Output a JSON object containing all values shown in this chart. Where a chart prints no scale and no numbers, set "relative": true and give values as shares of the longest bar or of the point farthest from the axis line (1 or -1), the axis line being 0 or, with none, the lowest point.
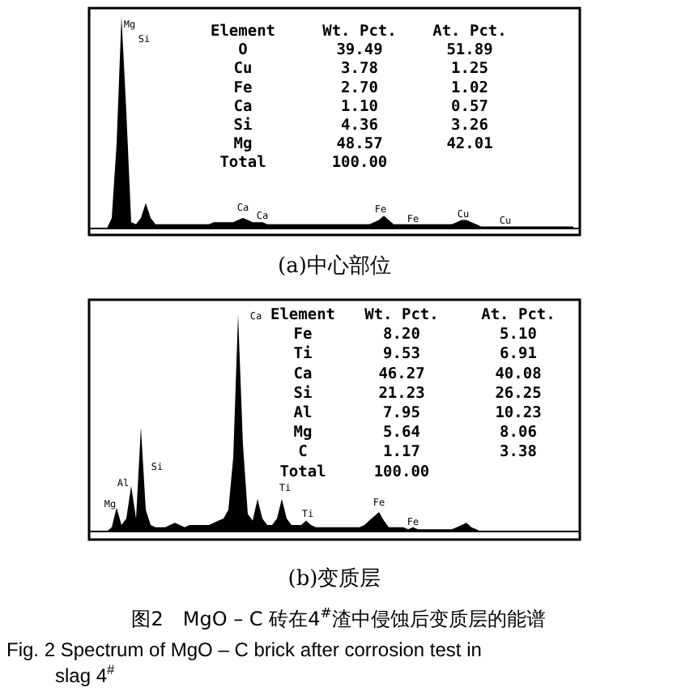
{
  "chart_data": [
    {
      "type": "area",
      "relative": true,
      "color": "#000000",
      "title": "(a)中心部位",
      "categories": [
        null,
        null,
        null,
        null,
        null,
        null,
        null,
        null,
        null,
        null,
        null,
        null,
        null,
        null,
        null,
        null,
        null,
        null,
        null,
        null,
        null,
        null,
        null,
        null,
        null,
        null,
        null,
        null,
        null,
        null,
        null,
        null,
        null,
        null,
        null,
        null,
        null,
        null,
        null,
        null,
        null,
        null,
        null,
        null,
        null,
        null,
        null,
        null,
        null,
        null,
        null,
        null,
        null,
        null,
        null,
        null,
        null,
        null,
        null,
        null,
        null,
        null,
        null,
        null,
        null,
        null,
        null,
        null,
        null,
        null,
        null,
        null,
        null,
        null,
        null,
        null,
        null,
        null,
        null,
        null,
        null,
        null,
        null,
        null,
        null,
        null,
        null,
        null,
        null,
        null,
        null,
        null,
        null,
        null,
        null,
        null,
        null,
        null,
        null,
        null
      ],
      "values": [
        0,
        0,
        0,
        0,
        0.05,
        0.4,
        1.0,
        0.55,
        0.03,
        0.02,
        0.05,
        0.12,
        0.05,
        0.02,
        0.02,
        0.02,
        0.02,
        0.02,
        0.02,
        0.02,
        0.02,
        0.02,
        0.02,
        0.02,
        0.02,
        0.03,
        0.03,
        0.03,
        0.03,
        0.03,
        0.04,
        0.05,
        0.04,
        0.03,
        0.03,
        0.03,
        0.02,
        0.02,
        0.02,
        0.02,
        0.02,
        0.02,
        0.02,
        0.02,
        0.02,
        0.02,
        0.02,
        0.02,
        0.02,
        0.02,
        0.02,
        0.02,
        0.02,
        0.02,
        0.02,
        0.02,
        0.02,
        0.02,
        0.03,
        0.04,
        0.06,
        0.04,
        0.02,
        0.02,
        0.02,
        0.02,
        0.02,
        0.02,
        0.02,
        0.02,
        0.02,
        0.02,
        0.02,
        0.02,
        0.02,
        0.03,
        0.04,
        0.04,
        0.03,
        0.02,
        0.01,
        0.01,
        0.01,
        0.01,
        0.01,
        0.01,
        0.01,
        0.01,
        0.01,
        0.01,
        0.01,
        0.01,
        0.01,
        0.01,
        0.01,
        0.01,
        0.01,
        0.01,
        0.01,
        0.01
      ],
      "annotations": [
        "Mg",
        "Si",
        "Ca",
        "Ca",
        "Fe",
        "Fe",
        "Cu",
        "Cu",
        "Element",
        "Wt. Pct.",
        "At. Pct.",
        "O",
        "39.49",
        "51.89",
        "Cu",
        "3.78",
        "1.25",
        "Fe",
        "2.70",
        "1.02",
        "Ca",
        "1.10",
        "0.57",
        "Si",
        "4.36",
        "3.26",
        "Mg",
        "48.57",
        "42.01",
        "Total",
        "100.00"
      ]
    },
    {
      "type": "area",
      "relative": true,
      "color": "#000000",
      "title": "(b)变质层",
      "categories": [
        null,
        null,
        null,
        null,
        null,
        null,
        null,
        null,
        null,
        null,
        null,
        null,
        null,
        null,
        null,
        null,
        null,
        null,
        null,
        null,
        null,
        null,
        null,
        null,
        null,
        null,
        null,
        null,
        null,
        null,
        null,
        null,
        null,
        null,
        null,
        null,
        null,
        null,
        null,
        null,
        null,
        null,
        null,
        null,
        null,
        null,
        null,
        null,
        null,
        null,
        null,
        null,
        null,
        null,
        null,
        null,
        null,
        null,
        null,
        null,
        null,
        null,
        null,
        null,
        null,
        null,
        null,
        null,
        null,
        null,
        null,
        null,
        null,
        null,
        null,
        null,
        null,
        null,
        null,
        null,
        null,
        null,
        null,
        null,
        null,
        null,
        null,
        null,
        null,
        null,
        null,
        null,
        null,
        null,
        null,
        null,
        null,
        null,
        null,
        null
      ],
      "values": [
        0,
        0,
        0,
        0,
        0.02,
        0.11,
        0.03,
        0.06,
        0.21,
        0.06,
        0.48,
        0.1,
        0.03,
        0.02,
        0.02,
        0.02,
        0.03,
        0.04,
        0.03,
        0.02,
        0.03,
        0.03,
        0.03,
        0.03,
        0.03,
        0.04,
        0.05,
        0.06,
        0.1,
        0.34,
        1.0,
        0.4,
        0.08,
        0.05,
        0.15,
        0.06,
        0.03,
        0.03,
        0.06,
        0.15,
        0.06,
        0.03,
        0.03,
        0.03,
        0.05,
        0.03,
        0.02,
        0.02,
        0.02,
        0.02,
        0.02,
        0.02,
        0.02,
        0.02,
        0.02,
        0.02,
        0.03,
        0.05,
        0.07,
        0.09,
        0.05,
        0.02,
        0.02,
        0.02,
        0.02,
        0.01,
        0.02,
        0.01,
        0.01,
        0.01,
        0.01,
        0.01,
        0.01,
        0.01,
        0.01,
        0.02,
        0.03,
        0.04,
        0.02,
        0.01,
        0,
        0,
        0,
        0,
        0,
        0,
        0,
        0,
        0,
        0,
        0,
        0,
        0,
        0,
        0,
        0,
        0,
        0,
        0,
        0
      ],
      "annotations": [
        "Ca",
        "Mg",
        "Al",
        "Si",
        "Ti",
        "Ti",
        "Fe",
        "Fe",
        "Element",
        "Wt. Pct.",
        "At. Pct.",
        "Fe",
        "8.20",
        "5.10",
        "Ti",
        "9.53",
        "6.91",
        "Ca",
        "46.27",
        "40.08",
        "Si",
        "21.23",
        "26.25",
        "Al",
        "7.95",
        "10.23",
        "Mg",
        "5.64",
        "8.06",
        "C",
        "1.17",
        "3.38",
        "Total",
        "100.00",
        "图2　MgO – C 砖在4$^{#}$渣中侵蚀后变质层的能谱",
        "Fig. 2 Spectrum of MgO – C brick after corrosion test in slag 4$^{#}$"
      ]
    }
  ]
}
